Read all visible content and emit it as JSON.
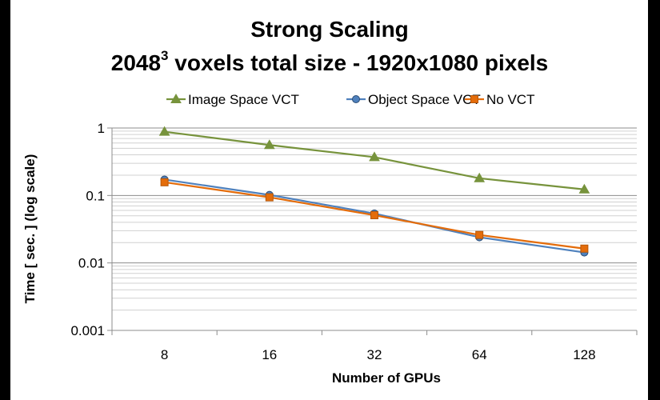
{
  "chart_data": {
    "type": "line",
    "title": "Strong Scaling",
    "subtitle": {
      "base": "2048",
      "superscript": "3",
      "rest": " voxels total size - 1920x1080 pixels"
    },
    "xlabel": "Number of GPUs",
    "ylabel": "Time [ sec. ] (log scale)",
    "y_scale": "log",
    "ylim": [
      0.001,
      1
    ],
    "yticks": [
      "0.001",
      "0.01",
      "0.1",
      "1"
    ],
    "categories": [
      "8",
      "16",
      "32",
      "64",
      "128"
    ],
    "grid": true,
    "legend_position": "top",
    "series": [
      {
        "name": "Image Space VCT",
        "color": "#77933c",
        "marker": "triangle",
        "values": [
          0.88,
          0.56,
          0.37,
          0.18,
          0.123
        ]
      },
      {
        "name": "Object Space VCT",
        "color": "#4f81bd",
        "marker": "circle",
        "values": [
          0.172,
          0.102,
          0.054,
          0.024,
          0.0143
        ]
      },
      {
        "name": "No VCT",
        "color": "#e46c0a",
        "marker": "square",
        "values": [
          0.157,
          0.094,
          0.051,
          0.026,
          0.0163
        ]
      }
    ]
  }
}
